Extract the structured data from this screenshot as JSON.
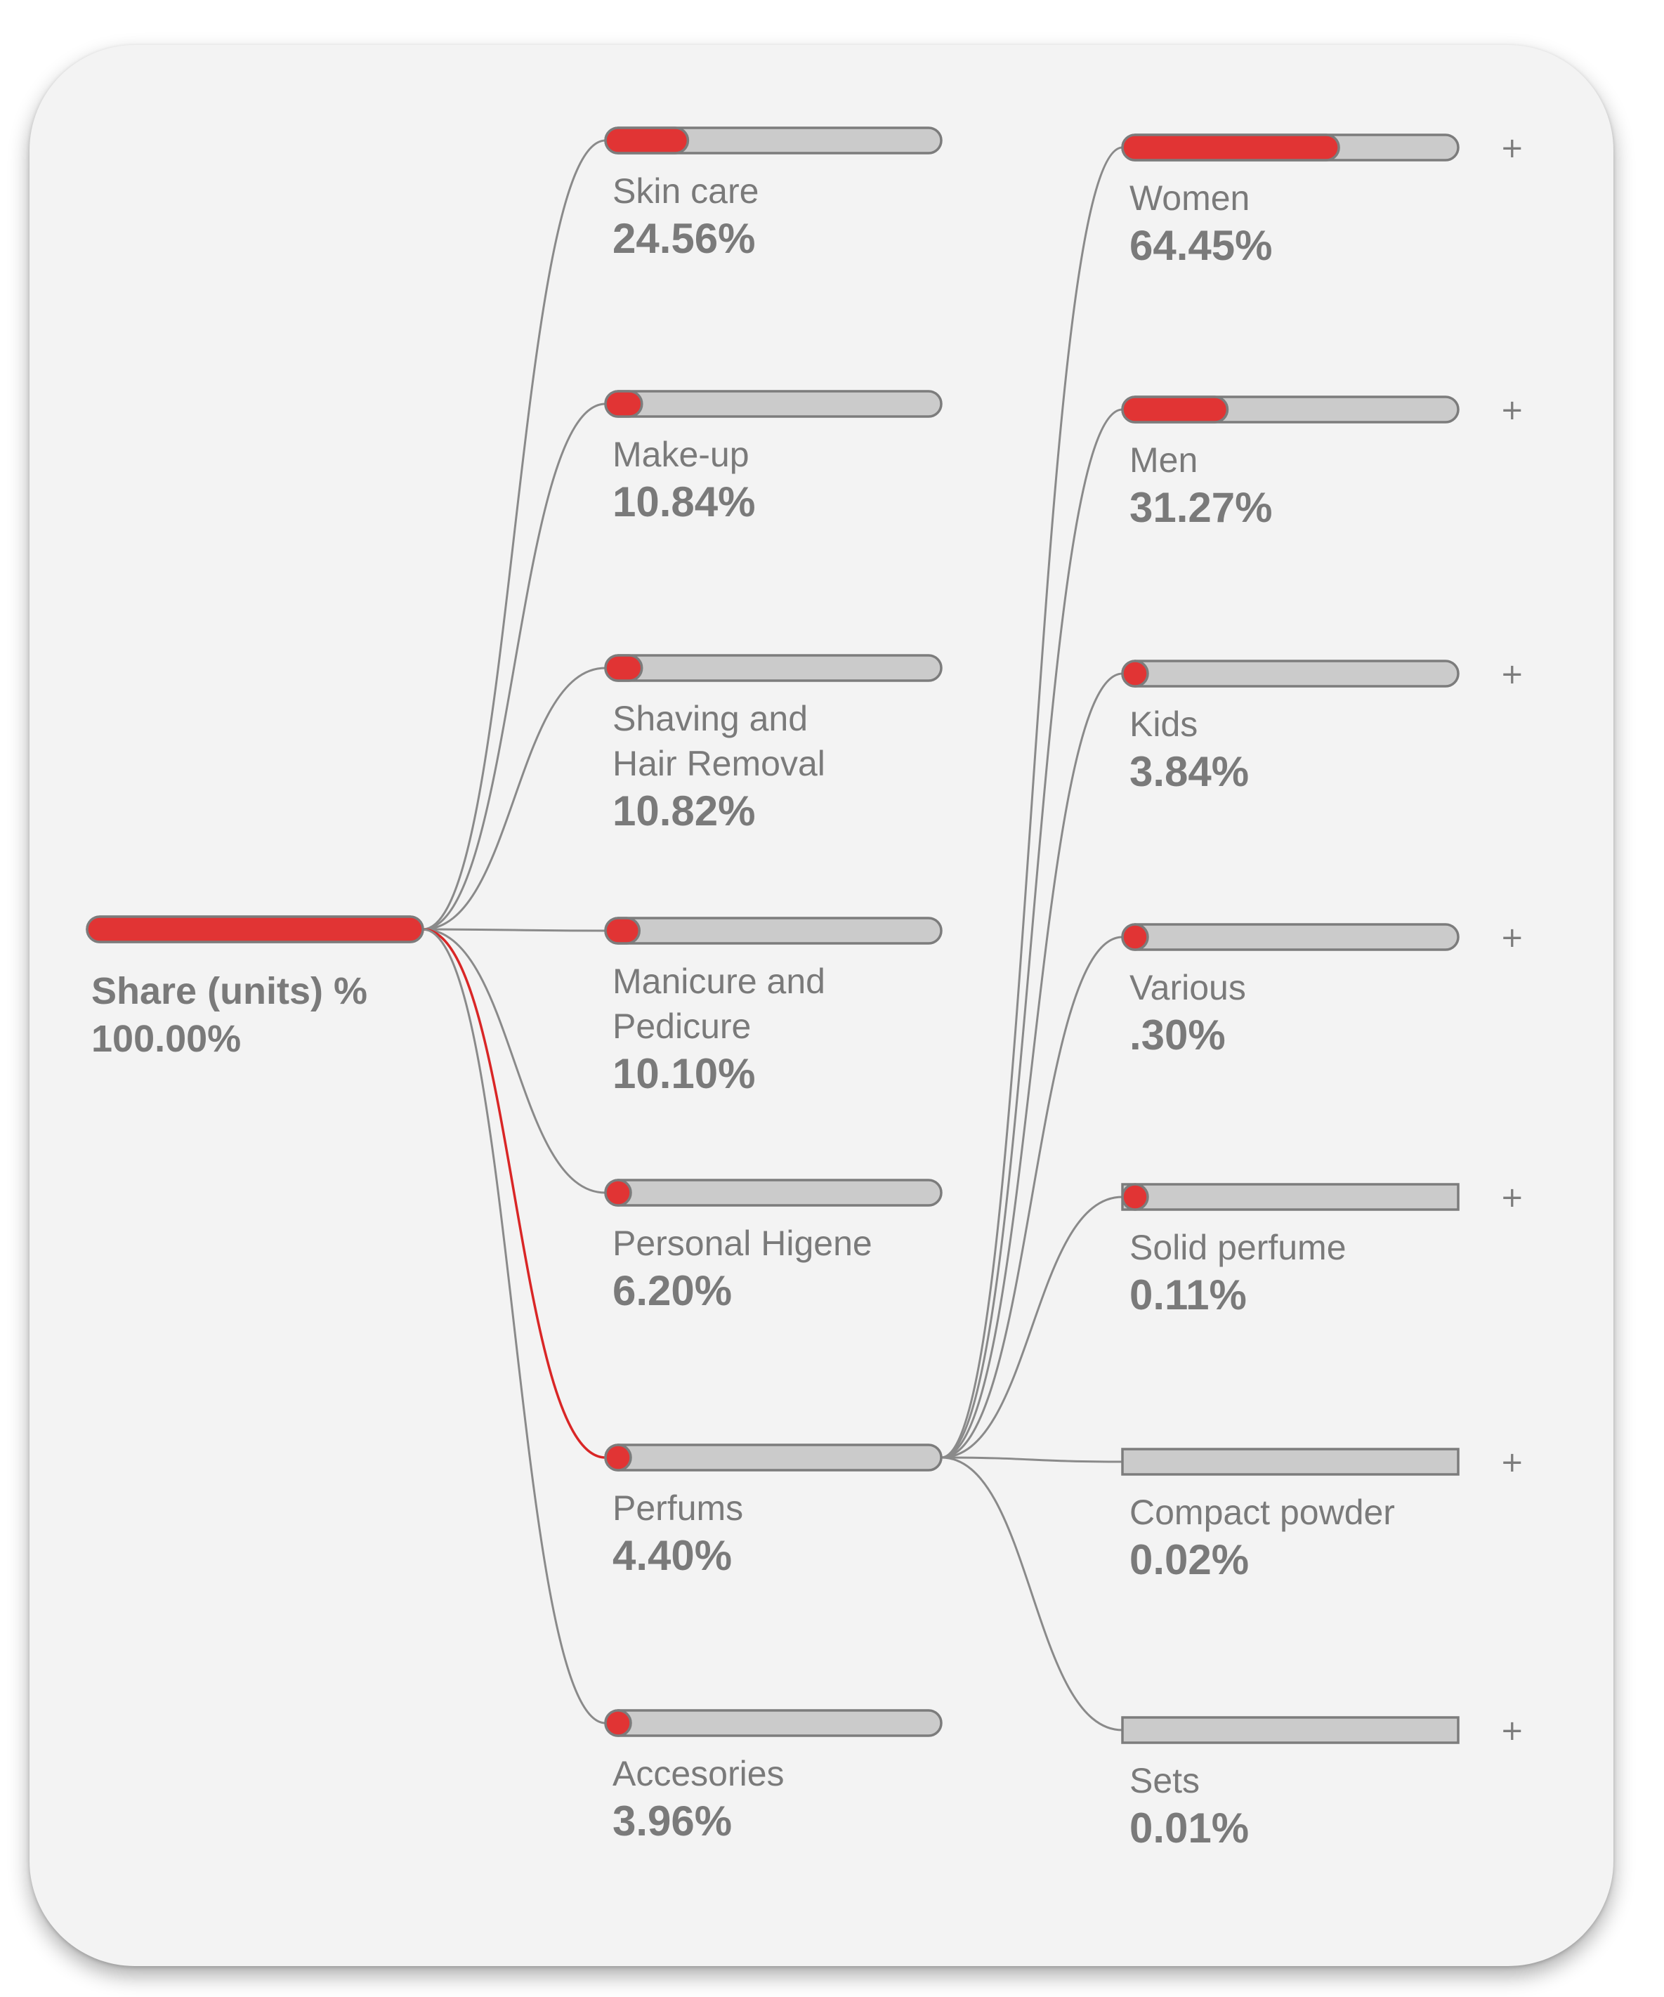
{
  "chart_data": {
    "type": "decomposition-tree",
    "root": {
      "name": "Share (units) %",
      "value_label": "100.00%",
      "value": 100.0
    },
    "level1": [
      {
        "name": "Skin care",
        "value_label": "24.56%",
        "value": 24.56
      },
      {
        "name": "Make-up",
        "value_label": "10.84%",
        "value": 10.84
      },
      {
        "name": "Shaving and\nHair Removal",
        "value_label": "10.82%",
        "value": 10.82
      },
      {
        "name": "Manicure and\nPedicure",
        "value_label": "10.10%",
        "value": 10.1
      },
      {
        "name": "Personal Higene",
        "value_label": "6.20%",
        "value": 6.2
      },
      {
        "name": "Perfums",
        "value_label": "4.40%",
        "value": 4.4,
        "expanded": true
      },
      {
        "name": "Accesories",
        "value_label": "3.96%",
        "value": 3.96
      }
    ],
    "level2_parent": "Perfums",
    "level2": [
      {
        "name": "Women",
        "value_label": "64.45%",
        "value": 64.45
      },
      {
        "name": "Men",
        "value_label": "31.27%",
        "value": 31.27
      },
      {
        "name": "Kids",
        "value_label": "3.84%",
        "value": 3.84
      },
      {
        "name": "Various",
        "value_label": ".30%",
        "value": 0.3
      },
      {
        "name": "Solid perfume",
        "value_label": "0.11%",
        "value": 0.11
      },
      {
        "name": "Compact powder",
        "value_label": "0.02%",
        "value": 0.02
      },
      {
        "name": "Sets",
        "value_label": "0.01%",
        "value": 0.01
      }
    ],
    "expand_symbol": "+",
    "colors": {
      "fill": "#e13434",
      "track": "#cbcbcb",
      "text": "#7a7a7a",
      "card": "#f3f3f3"
    }
  }
}
